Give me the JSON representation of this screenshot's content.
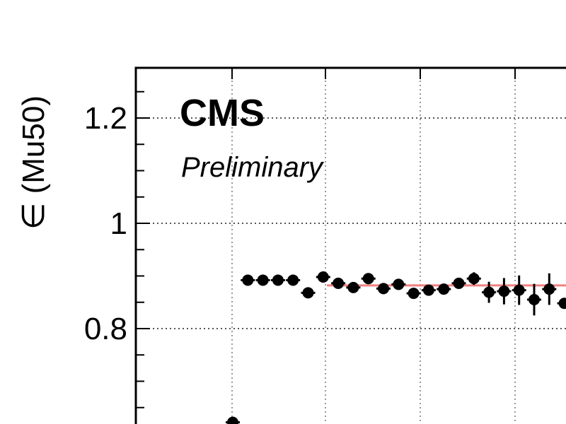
{
  "chart_data": {
    "type": "scatter",
    "ylabel": "∈ (Mu50)",
    "ylim": [
      0.6,
      1.3
    ],
    "yticks": [
      {
        "value": 0.8,
        "label": "0.8"
      },
      {
        "value": 1.0,
        "label": "1"
      },
      {
        "value": 1.2,
        "label": "1.2"
      }
    ],
    "yticks_minor": [
      0.65,
      0.7,
      0.75,
      0.85,
      0.9,
      0.95,
      1.05,
      1.1,
      1.15,
      1.25
    ],
    "grid": true,
    "annotations": {
      "experiment": "CMS",
      "status": "Preliminary"
    },
    "series": [
      {
        "marker_color": "#000000",
        "points": [
          {
            "y": 0.622,
            "yerr": 0.003
          },
          {
            "y": 0.892,
            "yerr": 0.003
          },
          {
            "y": 0.892,
            "yerr": 0.003
          },
          {
            "y": 0.892,
            "yerr": 0.003
          },
          {
            "y": 0.892,
            "yerr": 0.003
          },
          {
            "y": 0.868,
            "yerr": 0.004
          },
          {
            "y": 0.898,
            "yerr": 0.004
          },
          {
            "y": 0.886,
            "yerr": 0.004
          },
          {
            "y": 0.878,
            "yerr": 0.005
          },
          {
            "y": 0.895,
            "yerr": 0.005
          },
          {
            "y": 0.876,
            "yerr": 0.006
          },
          {
            "y": 0.884,
            "yerr": 0.006
          },
          {
            "y": 0.867,
            "yerr": 0.008
          },
          {
            "y": 0.873,
            "yerr": 0.008
          },
          {
            "y": 0.875,
            "yerr": 0.01
          },
          {
            "y": 0.886,
            "yerr": 0.01
          },
          {
            "y": 0.895,
            "yerr": 0.012
          },
          {
            "y": 0.869,
            "yerr": 0.02
          },
          {
            "y": 0.871,
            "yerr": 0.025
          },
          {
            "y": 0.873,
            "yerr": 0.028
          },
          {
            "y": 0.855,
            "yerr": 0.03
          },
          {
            "y": 0.875,
            "yerr": 0.03
          },
          {
            "y": 0.848,
            "yerr": 0.008
          }
        ]
      }
    ],
    "fit_line": {
      "y": 0.882,
      "color": "#f08080"
    }
  }
}
